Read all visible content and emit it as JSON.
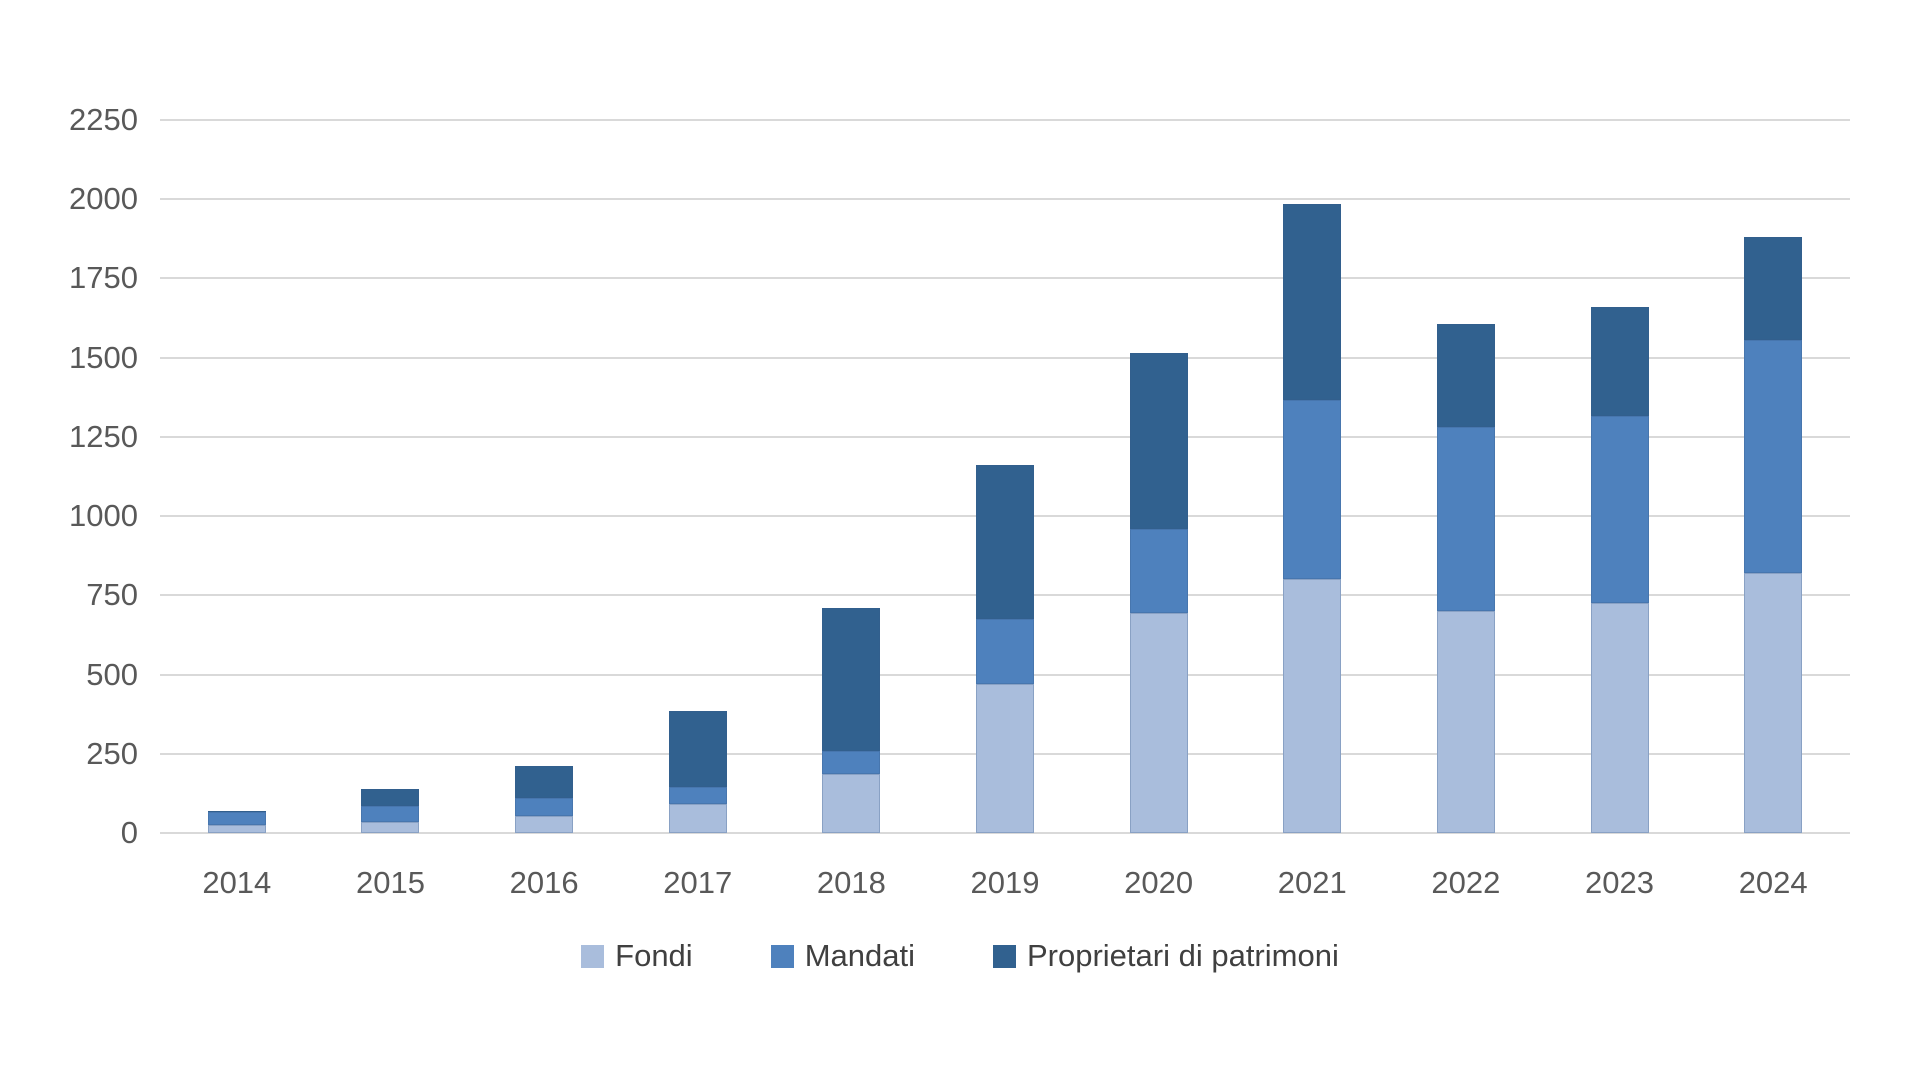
{
  "chart_data": {
    "type": "bar",
    "stacked": true,
    "title": "",
    "xlabel": "",
    "ylabel": "",
    "categories": [
      "2014",
      "2015",
      "2016",
      "2017",
      "2018",
      "2019",
      "2020",
      "2021",
      "2022",
      "2023",
      "2024"
    ],
    "series": [
      {
        "name": "Fondi",
        "color": "#A9BDDC",
        "values": [
          25,
          35,
          55,
          90,
          185,
          470,
          695,
          800,
          700,
          725,
          820
        ]
      },
      {
        "name": "Mandati",
        "color": "#4E81BD",
        "values": [
          40,
          50,
          55,
          55,
          75,
          205,
          265,
          565,
          580,
          590,
          735
        ]
      },
      {
        "name": "Proprietari di patrimoni",
        "color": "#31618F",
        "values": [
          5,
          55,
          100,
          240,
          450,
          485,
          555,
          620,
          325,
          345,
          325
        ]
      }
    ],
    "totals": [
      70,
      140,
      210,
      385,
      710,
      1160,
      1515,
      1985,
      1605,
      1660,
      1880
    ],
    "ylim": [
      0,
      2250
    ],
    "y_ticks": [
      0,
      250,
      500,
      750,
      1000,
      1250,
      1500,
      1750,
      2000,
      2250
    ],
    "grid": "horizontal",
    "legend_position": "bottom"
  },
  "colors": {
    "gridline": "#D9D9D9",
    "axis_text": "#595959",
    "legend_text": "#404040",
    "background": "#FFFFFF"
  }
}
